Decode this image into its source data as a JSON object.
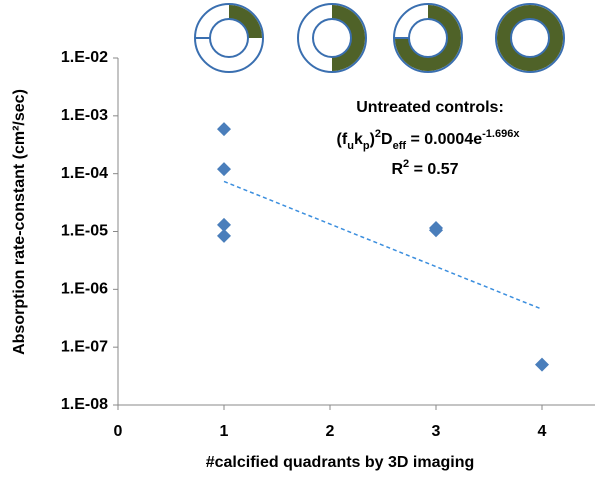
{
  "chart_data": {
    "type": "scatter",
    "x_label": "#calcified quadrants by 3D imaging",
    "y_label": "Absorption rate-constant (cm²/sec)",
    "series": [
      {
        "color": "#4a7ebb",
        "x": [
          1,
          1,
          1,
          1,
          3,
          3,
          4
        ],
        "values": [
          0.00059,
          0.00012,
          1.3e-05,
          8.4e-06,
          1.15e-05,
          1.05e-05,
          5e-08
        ]
      }
    ],
    "xlim": [
      0,
      4.5
    ],
    "xticks": [
      0,
      1,
      2,
      3,
      4
    ],
    "ylim": [
      1e-08,
      0.01
    ],
    "log_y": true,
    "yticks": [
      {
        "value": 1e-08,
        "label": "1.E-08"
      },
      {
        "value": 1e-07,
        "label": "1.E-07"
      },
      {
        "value": 1e-06,
        "label": "1.E-06"
      },
      {
        "value": 1e-05,
        "label": "1.E-05"
      },
      {
        "value": 0.0001,
        "label": "1.E-04"
      },
      {
        "value": 0.001,
        "label": "1.E-03"
      },
      {
        "value": 0.01,
        "label": "1.E-02"
      }
    ],
    "trendline": {
      "kind": "exponential",
      "coefficient": 0.0004,
      "exponent": -1.696,
      "color": "#3b8ede"
    },
    "annotation": {
      "title": "Untreated controls:",
      "equation": [
        "(f",
        "u",
        "k",
        "p",
        ")",
        "2",
        "D",
        "eff",
        " = 0.0004e",
        "-1.696x"
      ],
      "r2": [
        "R",
        "2",
        " = 0.57"
      ]
    }
  }
}
